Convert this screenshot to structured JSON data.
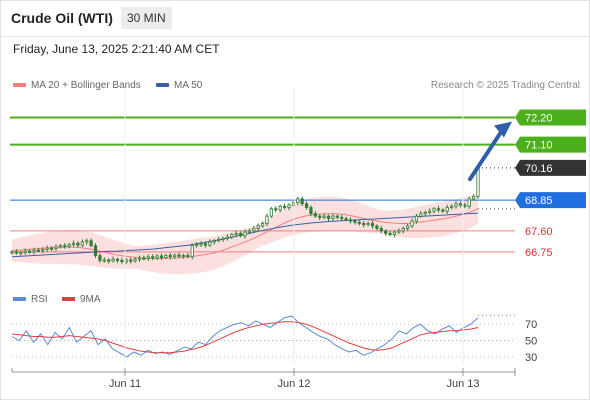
{
  "header": {
    "title": "Crude Oil (WTI)",
    "timeframe": "30 MIN",
    "datetime": "Friday, June 13, 2025 2:21:40 AM CET"
  },
  "legend": {
    "ma20": "MA 20 + Bollinger Bands",
    "ma50": "MA 50",
    "credit": "Research © 2025 Trading Central"
  },
  "rsi_legend": {
    "rsi": "RSI",
    "ma9": "9MA"
  },
  "colors": {
    "candle": "#2e7d32",
    "ma20": "#f08080",
    "ma50": "#3b5ea8",
    "band_fill": "#fbd6d6",
    "resistance": "#4caf1c",
    "support": "#f08080",
    "pivot": "#1f6fe0",
    "current": "#333333",
    "rsi": "#5b8bd6",
    "rsi_ma": "#e04040",
    "arrow": "#2f5fa8"
  },
  "chart_data": {
    "type": "candlestick",
    "price_scale": [
      65.2,
      73.4
    ],
    "x_ticks": [
      "Jun 11",
      "Jun 12",
      "Jun 13"
    ],
    "levels": [
      {
        "value": 72.2,
        "label": "72.20",
        "kind": "resistance"
      },
      {
        "value": 71.1,
        "label": "71.10",
        "kind": "resistance"
      },
      {
        "value": 70.16,
        "label": "70.16",
        "kind": "current"
      },
      {
        "value": 68.85,
        "label": "68.85",
        "kind": "pivot"
      },
      {
        "value": 67.6,
        "label": "67.60",
        "kind": "support"
      },
      {
        "value": 66.75,
        "label": "66.75",
        "kind": "support"
      }
    ],
    "close_series": [
      66.75,
      66.7,
      66.72,
      66.78,
      66.75,
      66.82,
      66.8,
      66.85,
      66.9,
      66.88,
      66.95,
      67.0,
      66.98,
      67.05,
      67.1,
      67.02,
      67.15,
      67.2,
      67.0,
      66.6,
      66.4,
      66.42,
      66.38,
      66.45,
      66.4,
      66.35,
      66.42,
      66.38,
      66.45,
      66.5,
      66.48,
      66.55,
      66.5,
      66.58,
      66.52,
      66.6,
      66.55,
      66.62,
      66.58,
      66.6,
      66.55,
      67.0,
      67.05,
      67.08,
      67.02,
      67.15,
      67.2,
      67.25,
      67.3,
      67.35,
      67.45,
      67.5,
      67.4,
      67.55,
      67.6,
      67.7,
      67.8,
      67.9,
      68.2,
      68.5,
      68.45,
      68.6,
      68.55,
      68.65,
      68.75,
      68.9,
      68.7,
      68.55,
      68.3,
      68.2,
      68.15,
      68.2,
      68.1,
      68.2,
      68.15,
      68.1,
      68.05,
      68.0,
      67.95,
      67.9,
      67.85,
      67.9,
      67.8,
      67.7,
      67.6,
      67.5,
      67.45,
      67.55,
      67.6,
      67.7,
      67.8,
      68.0,
      68.2,
      68.3,
      68.35,
      68.4,
      68.5,
      68.45,
      68.4,
      68.55,
      68.6,
      68.7,
      68.65,
      68.6,
      68.9,
      69.0,
      70.16
    ],
    "ma20": [
      66.8,
      66.82,
      66.84,
      66.86,
      66.88,
      66.9,
      66.92,
      66.93,
      66.94,
      66.94,
      66.93,
      66.9,
      66.86,
      66.8,
      66.74,
      66.68,
      66.62,
      66.58,
      66.55,
      66.52,
      66.5,
      66.49,
      66.48,
      66.48,
      66.49,
      66.5,
      66.52,
      66.55,
      66.58,
      66.62,
      66.66,
      66.72,
      66.8,
      66.9,
      67.0,
      67.1,
      67.2,
      67.32,
      67.45,
      67.58,
      67.72,
      67.85,
      67.98,
      68.08,
      68.16,
      68.22,
      68.26,
      68.28,
      68.3,
      68.3,
      68.28,
      68.25,
      68.2,
      68.14,
      68.08,
      68.02,
      67.98,
      67.94,
      67.92,
      67.9,
      67.9,
      67.92,
      67.95,
      67.98,
      68.02,
      68.06,
      68.1,
      68.16,
      68.22,
      68.3,
      68.38,
      68.5
    ],
    "ma50": [
      66.55,
      66.57,
      66.59,
      66.61,
      66.63,
      66.65,
      66.67,
      66.69,
      66.71,
      66.73,
      66.75,
      66.77,
      66.78,
      66.8,
      66.82,
      66.84,
      66.86,
      66.9,
      66.94,
      66.98,
      67.02,
      67.08,
      67.14,
      67.2,
      67.27,
      67.34,
      67.42,
      67.5,
      67.58,
      67.65,
      67.72,
      67.78,
      67.84,
      67.88,
      67.92,
      67.95,
      67.98,
      68.0,
      68.02,
      68.04,
      68.06,
      68.08,
      68.1,
      68.12,
      68.14,
      68.16,
      68.18,
      68.2,
      68.22,
      68.24,
      68.26,
      68.28,
      68.3,
      68.32
    ],
    "rsi": {
      "levels": [
        70,
        50,
        30
      ],
      "values": [
        55,
        50,
        62,
        48,
        58,
        45,
        60,
        52,
        66,
        48,
        55,
        62,
        45,
        52,
        40,
        35,
        30,
        36,
        32,
        38,
        34,
        36,
        33,
        37,
        42,
        40,
        48,
        45,
        55,
        62,
        66,
        70,
        72,
        68,
        74,
        70,
        66,
        72,
        78,
        80,
        72,
        66,
        60,
        55,
        52,
        45,
        40,
        36,
        38,
        32,
        35,
        40,
        45,
        52,
        62,
        58,
        66,
        70,
        62,
        58,
        64,
        68,
        60,
        66,
        70,
        78
      ],
      "ma9": [
        58,
        57,
        56,
        55,
        55,
        54,
        54,
        55,
        56,
        55,
        54,
        53,
        52,
        50,
        47,
        44,
        41,
        39,
        37,
        36,
        35,
        35,
        35,
        36,
        37,
        39,
        41,
        44,
        48,
        52,
        56,
        60,
        63,
        66,
        68,
        70,
        71,
        72,
        73,
        73,
        72,
        70,
        67,
        63,
        59,
        55,
        51,
        47,
        44,
        41,
        39,
        38,
        39,
        41,
        45,
        49,
        53,
        57,
        59,
        60,
        61,
        62,
        62,
        63,
        64,
        66
      ]
    }
  }
}
